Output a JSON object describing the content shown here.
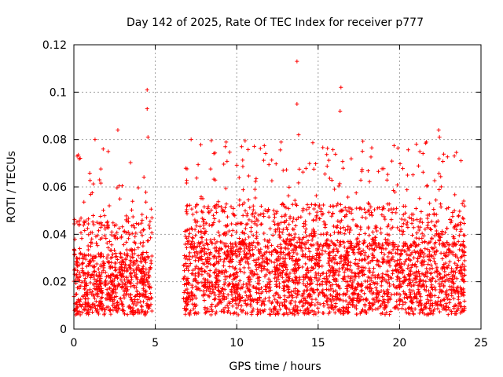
{
  "chart_data": {
    "type": "scatter",
    "title": "Day 142 of 2025, Rate Of TEC Index for receiver p777",
    "xlabel": "GPS time / hours",
    "ylabel": "ROTI / TECUs",
    "xlim": [
      0,
      25
    ],
    "ylim": [
      0,
      0.12
    ],
    "x_ticks": [
      0,
      5,
      10,
      15,
      20,
      25
    ],
    "x_tick_labels": [
      "0",
      "5",
      "10",
      "15",
      "20",
      "25"
    ],
    "y_ticks": [
      0,
      0.02,
      0.04,
      0.06,
      0.08,
      0.1,
      0.12
    ],
    "y_tick_labels": [
      "0",
      "0.02",
      "0.04",
      "0.06",
      "0.08",
      "0.1",
      "0.12"
    ],
    "grid": true,
    "marker": "+",
    "color": "#ff0000",
    "series": [
      {
        "name": "ROTI",
        "segments": [
          {
            "x_range": [
              0.0,
              4.8
            ],
            "typical_range": [
              0.01,
              0.03
            ],
            "max_seen": 0.101
          },
          {
            "x_range": [
              6.7,
              24.0
            ],
            "typical_range": [
              0.01,
              0.035
            ],
            "max_seen": 0.113
          }
        ],
        "notable_points": [
          {
            "x": 0.2,
            "y": 0.073
          },
          {
            "x": 1.3,
            "y": 0.08
          },
          {
            "x": 1.8,
            "y": 0.076
          },
          {
            "x": 2.7,
            "y": 0.084
          },
          {
            "x": 4.5,
            "y": 0.101
          },
          {
            "x": 4.5,
            "y": 0.093
          },
          {
            "x": 4.55,
            "y": 0.081
          },
          {
            "x": 7.2,
            "y": 0.08
          },
          {
            "x": 9.3,
            "y": 0.077
          },
          {
            "x": 10.3,
            "y": 0.077
          },
          {
            "x": 13.7,
            "y": 0.113
          },
          {
            "x": 13.7,
            "y": 0.095
          },
          {
            "x": 13.8,
            "y": 0.082
          },
          {
            "x": 16.4,
            "y": 0.102
          },
          {
            "x": 16.35,
            "y": 0.092
          },
          {
            "x": 22.4,
            "y": 0.084
          },
          {
            "x": 22.45,
            "y": 0.081
          }
        ]
      }
    ]
  }
}
